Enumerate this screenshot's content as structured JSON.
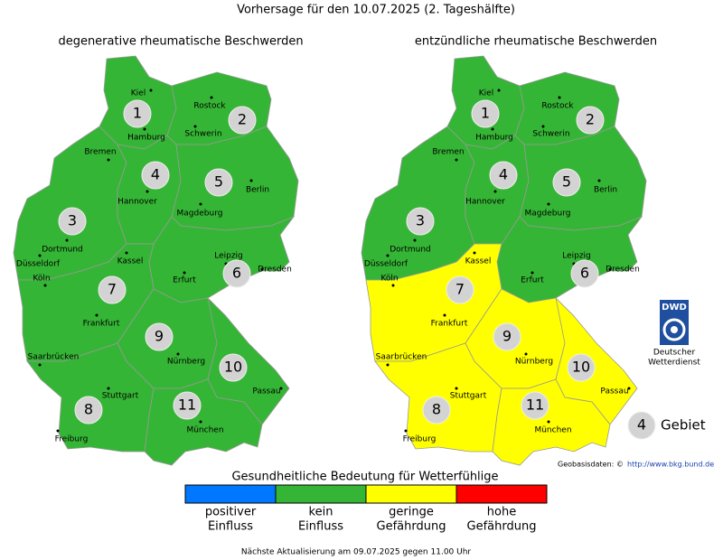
{
  "title": "Vorhersage für den 10.07.2025 (2. Tageshälfte)",
  "maps": [
    {
      "title": "degenerative rheumatische Beschwerden",
      "regions": [
        {
          "label": "1",
          "color": "#35b535"
        },
        {
          "label": "2",
          "color": "#35b535"
        },
        {
          "label": "3",
          "color": "#35b535"
        },
        {
          "label": "4",
          "color": "#35b535"
        },
        {
          "label": "5",
          "color": "#35b535"
        },
        {
          "label": "6",
          "color": "#35b535"
        },
        {
          "label": "7",
          "color": "#35b535"
        },
        {
          "label": "8",
          "color": "#35b535"
        },
        {
          "label": "9",
          "color": "#35b535"
        },
        {
          "label": "10",
          "color": "#35b535"
        },
        {
          "label": "11",
          "color": "#35b535"
        }
      ],
      "cities": [
        "Kiel",
        "Rostock",
        "Hamburg",
        "Schwerin",
        "Bremen",
        "Hannover",
        "Berlin",
        "Magdeburg",
        "Dortmund",
        "Düsseldorf",
        "Köln",
        "Kassel",
        "Leipzig",
        "Dresden",
        "Erfurt",
        "Frankfurt",
        "Saarbrücken",
        "Nürnberg",
        "Passau",
        "Stuttgart",
        "München",
        "Freiburg"
      ]
    },
    {
      "title": "entzündliche rheumatische Beschwerden",
      "regions": [
        {
          "label": "1",
          "color": "#35b535"
        },
        {
          "label": "2",
          "color": "#35b535"
        },
        {
          "label": "3",
          "color": "#35b535"
        },
        {
          "label": "4",
          "color": "#35b535"
        },
        {
          "label": "5",
          "color": "#35b535"
        },
        {
          "label": "6",
          "color": "#35b535"
        },
        {
          "label": "7",
          "color": "#ffff00"
        },
        {
          "label": "8",
          "color": "#ffff00"
        },
        {
          "label": "9",
          "color": "#ffff00"
        },
        {
          "label": "10",
          "color": "#ffff00"
        },
        {
          "label": "11",
          "color": "#ffff00"
        }
      ],
      "cities": [
        "Kiel",
        "Rostock",
        "Hamburg",
        "Schwerin",
        "Bremen",
        "Hannover",
        "Berlin",
        "Magdeburg",
        "Dortmund",
        "Düsseldorf",
        "Köln",
        "Kassel",
        "Leipzig",
        "Dresden",
        "Erfurt",
        "Frankfurt",
        "Saarbrücken",
        "Nürnberg",
        "Passau",
        "Stuttgart",
        "München",
        "Freiburg"
      ]
    }
  ],
  "legend": {
    "title": "Gesundheitliche Bedeutung für Wetterfühlige",
    "items": [
      {
        "label": [
          "positiver",
          "Einfluss"
        ],
        "color": "#0077ff"
      },
      {
        "label": [
          "kein",
          "Einfluss"
        ],
        "color": "#35b535"
      },
      {
        "label": [
          "geringe",
          "Gefährdung"
        ],
        "color": "#ffff00"
      },
      {
        "label": [
          "hohe",
          "Gefährdung"
        ],
        "color": "#ff0000"
      }
    ]
  },
  "key": {
    "number": "4",
    "label": "Gebiet"
  },
  "logo": {
    "text": "DWD",
    "caption": [
      "Deutscher",
      "Wetterdienst"
    ]
  },
  "source": {
    "label": "Geobasisdaten: ©",
    "link": "http://www.bkg.bund.de"
  },
  "footer": "Nächste Aktualisierung am 09.07.2025 gegen 11.00 Uhr"
}
